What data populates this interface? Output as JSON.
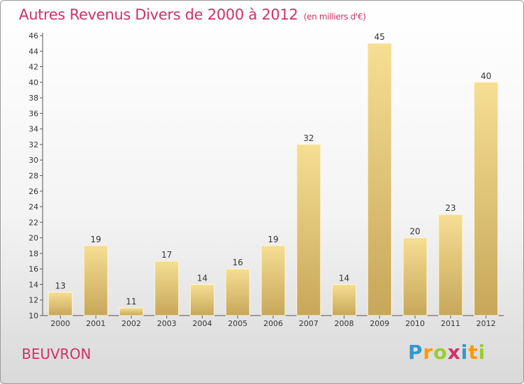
{
  "header": {
    "title": "Autres Revenus Divers de 2000 à 2012",
    "unit": "(en milliers d'€)"
  },
  "footer": {
    "commune": "BEUVRON",
    "logo_letters": [
      "P",
      "r",
      "o",
      "x",
      "i",
      "t",
      "i"
    ],
    "logo_colors": [
      "#3399cc",
      "#ff9900",
      "#99cc33",
      "#cc3366",
      "#3399cc",
      "#ff9900",
      "#99cc33"
    ]
  },
  "chart_data": {
    "type": "bar",
    "categories": [
      "2000",
      "2001",
      "2002",
      "2003",
      "2004",
      "2005",
      "2006",
      "2007",
      "2008",
      "2009",
      "2010",
      "2011",
      "2012"
    ],
    "values": [
      13,
      19,
      11,
      17,
      14,
      16,
      19,
      32,
      14,
      45,
      20,
      23,
      40
    ],
    "title": "Autres Revenus Divers de 2000 à 2012",
    "subtitle": "(en milliers d'€)",
    "ylim": [
      10,
      46
    ],
    "yticks": [
      10,
      12,
      14,
      16,
      18,
      20,
      22,
      24,
      26,
      28,
      30,
      32,
      34,
      36,
      38,
      40,
      42,
      44,
      46
    ],
    "grid": false,
    "bar_color": "#f3d98c"
  }
}
